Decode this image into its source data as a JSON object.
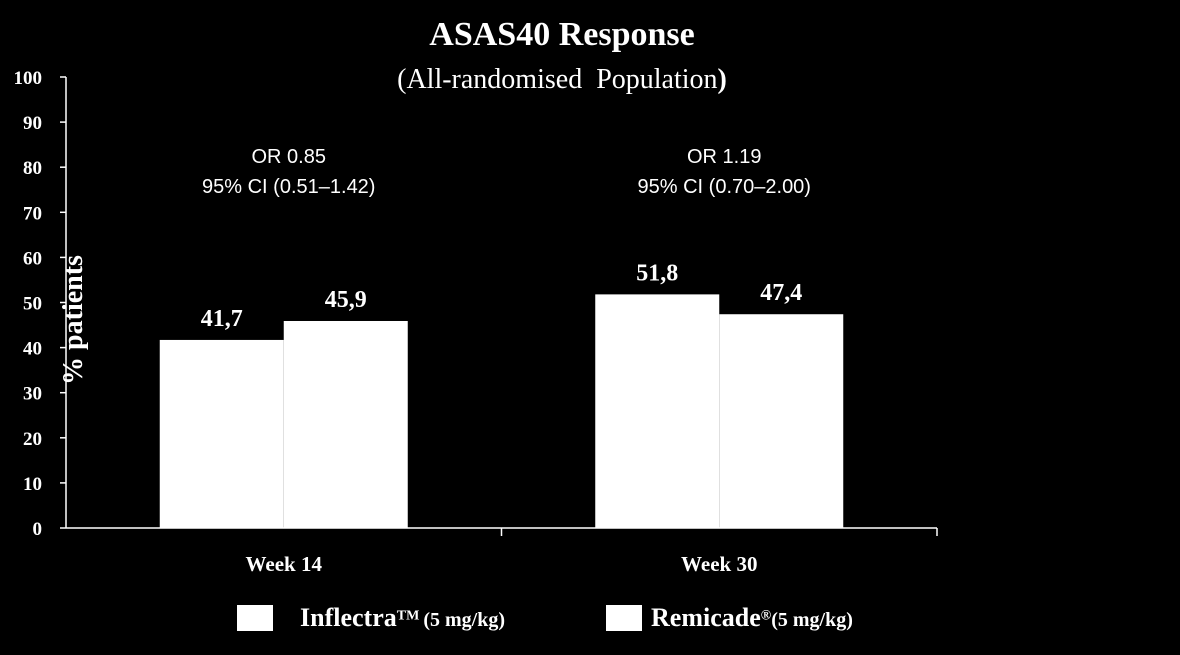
{
  "chart_data": {
    "type": "bar",
    "title": "ASAS40 Response",
    "subtitle_text": "(All-randomised  Population",
    "subtitle_close": ")",
    "ylabel": "% patients",
    "ylim": [
      0,
      100
    ],
    "yticks": [
      "0",
      "10",
      "20",
      "30",
      "40",
      "50",
      "60",
      "70",
      "80",
      "90",
      "100"
    ],
    "categories": [
      "Week 14",
      "Week 30"
    ],
    "series": [
      {
        "name": "Inflectra",
        "mark": "TM",
        "dose": "(5 mg/kg)",
        "color": "#ffffff",
        "values": [
          41.7,
          51.8
        ],
        "labels": [
          "41,7",
          "51,8"
        ]
      },
      {
        "name": "Remicade",
        "mark": "®",
        "dose": "(5 mg/kg)",
        "color": "#ffffff",
        "values": [
          45.9,
          47.4
        ],
        "labels": [
          "45,9",
          "47,4"
        ]
      }
    ],
    "annotations": [
      {
        "line1": "OR 0.85",
        "line2": "95% CI (0.51–1.42)"
      },
      {
        "line1": "OR 1.19",
        "line2": "95% CI (0.70–2.00)"
      }
    ],
    "grid": false,
    "legend_position": "bottom",
    "background": "#000000",
    "text_color": "#ffffff"
  }
}
